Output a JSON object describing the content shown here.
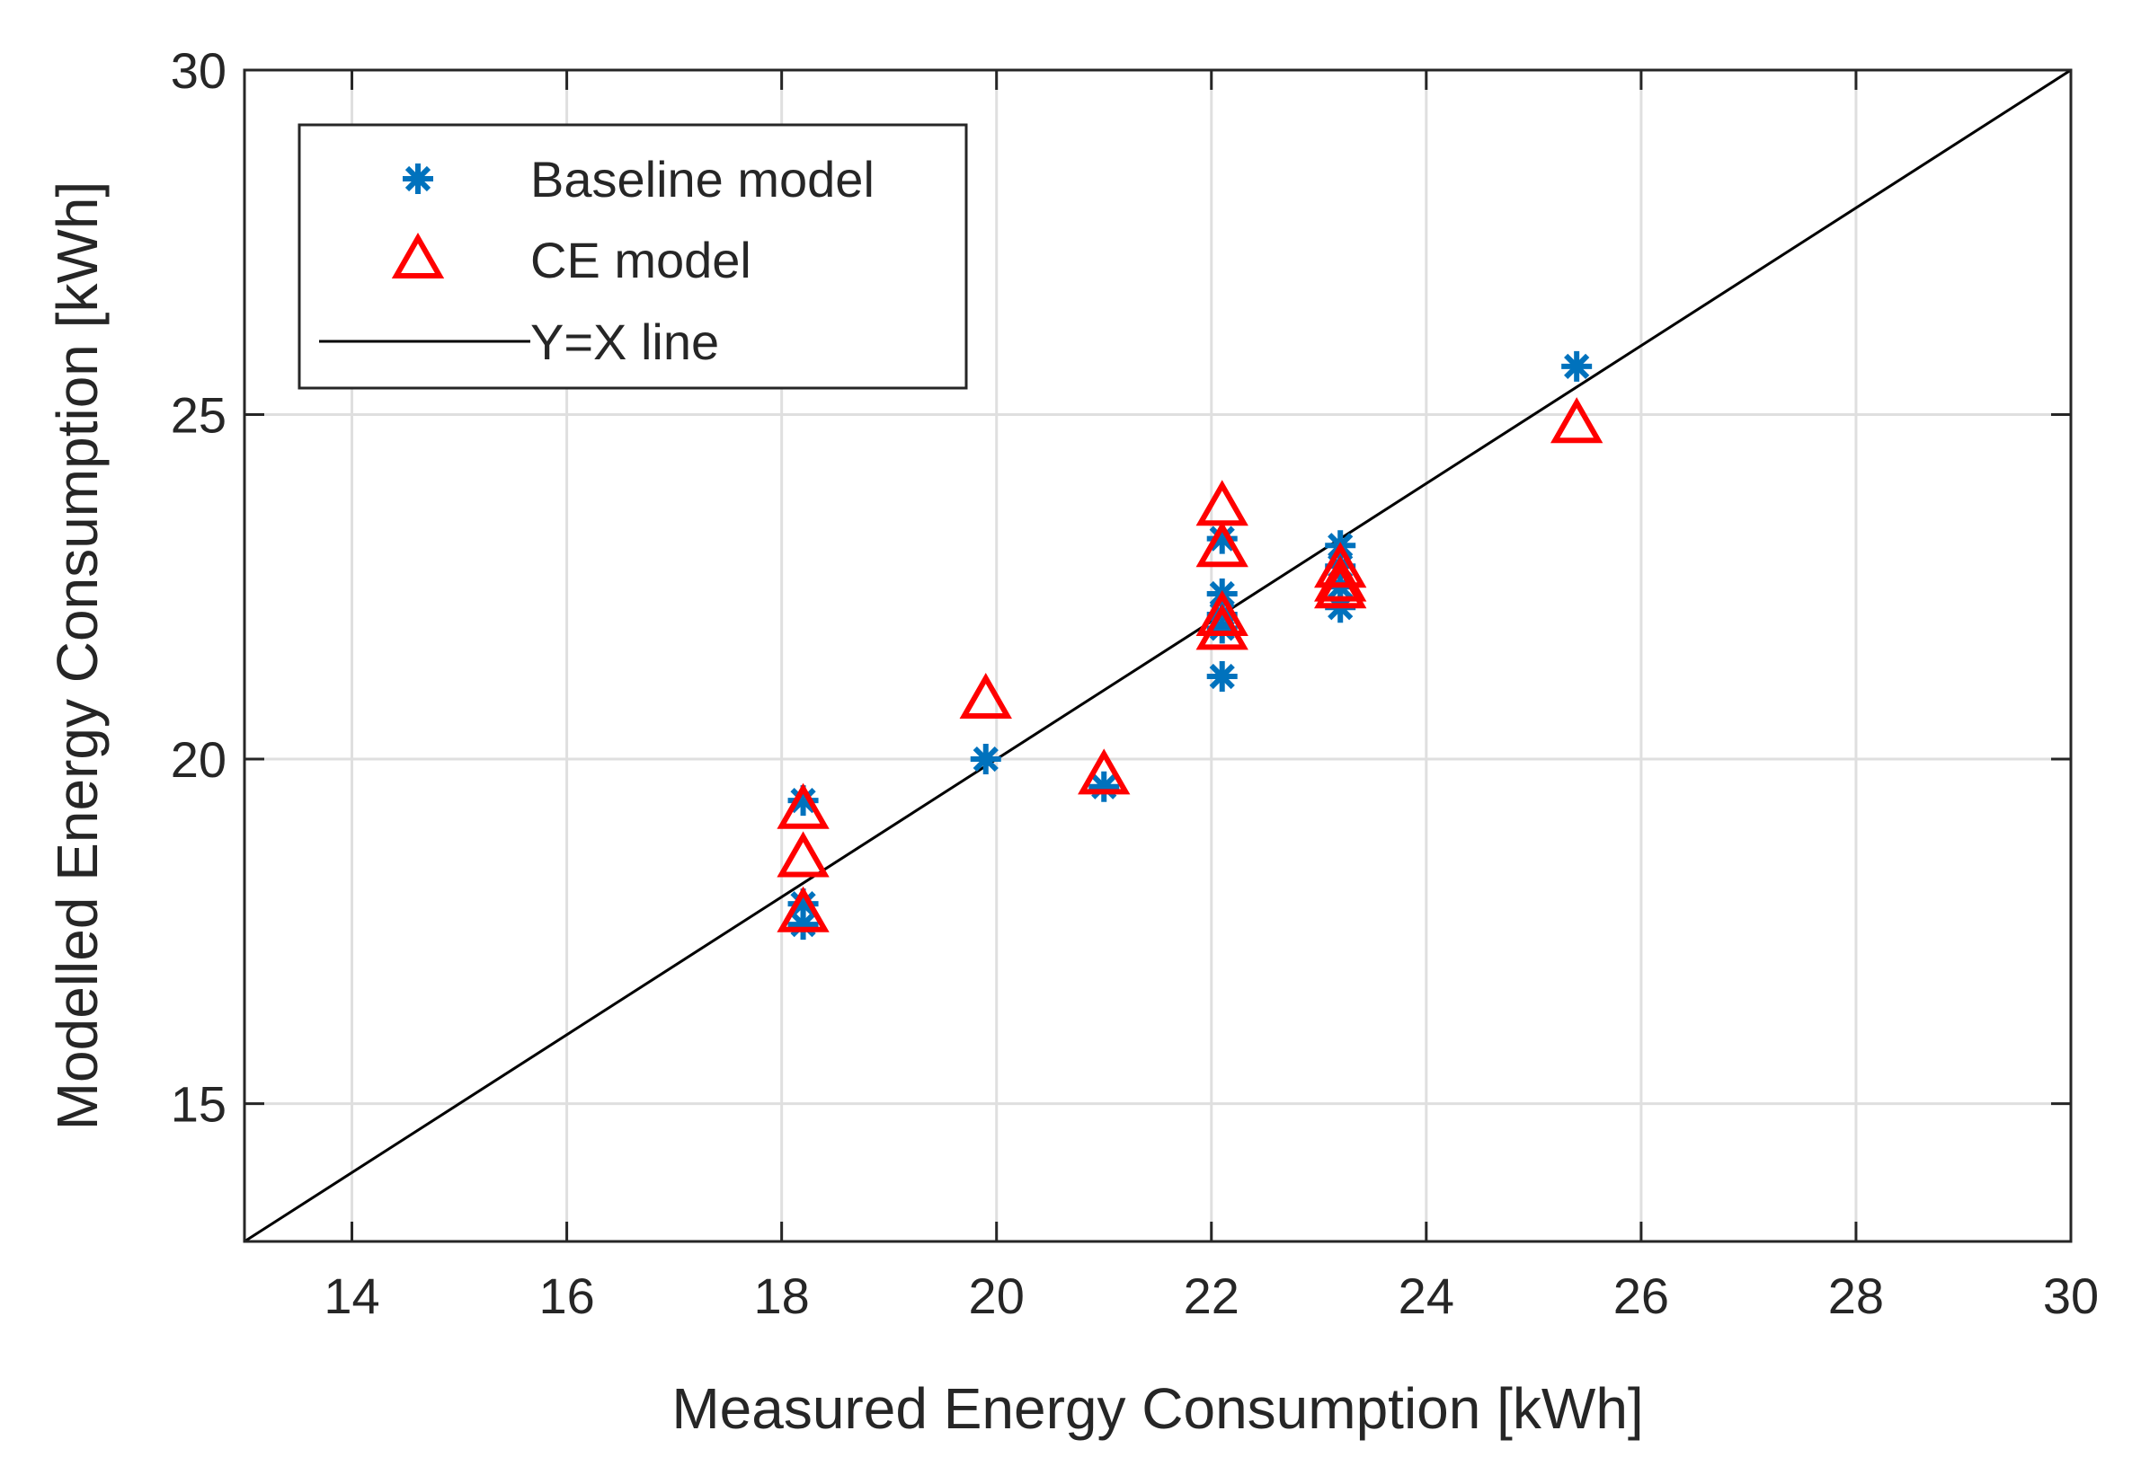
{
  "chart_data": {
    "type": "scatter",
    "title": "",
    "xlabel": "Measured Energy Consumption [kWh]",
    "ylabel": "Modelled Energy Consumption [kWh]",
    "xlim": [
      13,
      30
    ],
    "ylim": [
      13,
      30
    ],
    "xticks": [
      14,
      16,
      18,
      20,
      22,
      24,
      26,
      28,
      30
    ],
    "yticks": [
      15,
      20,
      25,
      30
    ],
    "grid": true,
    "legend_position": "top-left",
    "series": [
      {
        "name": "Baseline model",
        "marker": "asterisk",
        "color": "#0072BD",
        "x": [
          18.2,
          18.2,
          18.2,
          19.9,
          21.0,
          22.1,
          22.1,
          22.1,
          22.1,
          22.1,
          23.2,
          23.2,
          23.2,
          23.2,
          25.4
        ],
        "y": [
          19.4,
          17.9,
          17.6,
          20.0,
          19.6,
          23.2,
          22.4,
          22.1,
          21.9,
          21.2,
          23.1,
          22.8,
          22.5,
          22.2,
          25.7
        ]
      },
      {
        "name": "CE model",
        "marker": "triangle",
        "color": "#FF0000",
        "x": [
          18.2,
          18.2,
          18.2,
          19.9,
          21.0,
          22.1,
          22.1,
          22.1,
          22.1,
          23.2,
          23.2,
          23.2,
          25.4
        ],
        "y": [
          19.3,
          18.6,
          17.8,
          20.9,
          19.8,
          23.7,
          23.1,
          22.1,
          21.9,
          22.8,
          22.6,
          22.5,
          24.9
        ]
      },
      {
        "name": "Y=X line",
        "line": true,
        "color": "#000000",
        "x": [
          13,
          30
        ],
        "y": [
          13,
          30
        ]
      }
    ]
  }
}
